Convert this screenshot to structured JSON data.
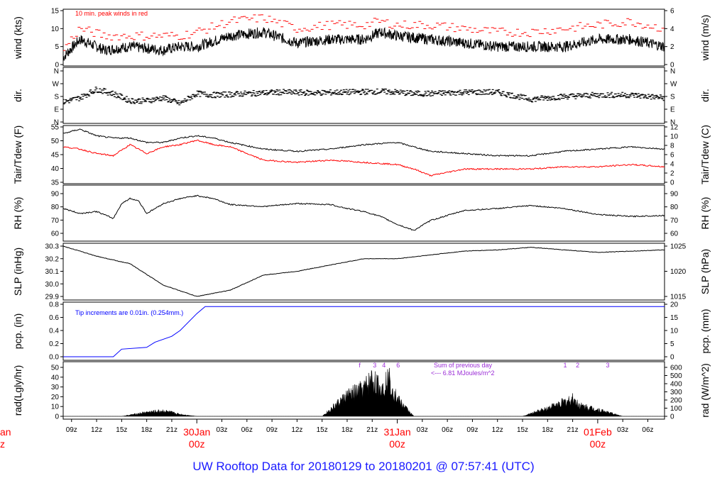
{
  "footer": {
    "title": "UW Rooftop Data for 20180129  to  20180201 @ 07:57:41  (UTC)"
  },
  "colors": {
    "primary_trace": "#000000",
    "peak_wind": "#ff0000",
    "dewpoint": "#ff0000",
    "precip": "#0000ff",
    "radiation_note": "#9a2bd6",
    "date_labels": "#ff0000",
    "title": "#1a1aff"
  },
  "x_axis": {
    "start": "2018-01-29 08:00 UTC",
    "end": "2018-02-01 07:57 UTC",
    "hour_ticks": [
      "09z",
      "12z",
      "15z",
      "18z",
      "21z",
      "03z",
      "06z",
      "09z",
      "12z",
      "15z",
      "18z",
      "21z",
      "03z",
      "06z",
      "09z",
      "12z",
      "15z",
      "18z",
      "21z",
      "03z",
      "06z"
    ],
    "hour_tick_times": [
      9,
      12,
      15,
      18,
      21,
      27,
      30,
      33,
      36,
      39,
      42,
      45,
      51,
      54,
      57,
      60,
      63,
      66,
      69,
      75,
      78
    ],
    "day_labels": [
      {
        "date": "30Jan",
        "hour": "00z",
        "t": 24
      },
      {
        "date": "31Jan",
        "hour": "00z",
        "t": 48
      },
      {
        "date": "01Feb",
        "hour": "00z",
        "t": 72
      }
    ],
    "partial_left_label": {
      "date": "an",
      "hour": "z"
    }
  },
  "chart_data": [
    {
      "type": "line",
      "name": "wind",
      "ylabel_left": "wind (kts)",
      "ylabel_right": "wind (m/s)",
      "annotation": "10 min. peak winds in red",
      "ylim": [
        0,
        15
      ],
      "left_ticks": [
        "0",
        "5",
        "10",
        "15"
      ],
      "right_ticks": [
        "0",
        "2",
        "4",
        "6"
      ],
      "x": [
        8,
        10,
        13,
        16,
        20,
        22,
        24,
        28,
        32,
        36,
        40,
        44,
        46,
        48,
        52,
        56,
        60,
        64,
        68,
        72,
        76,
        80
      ],
      "series": [
        {
          "values": [
            2,
            7,
            4,
            5,
            4,
            5,
            5,
            8,
            9,
            6,
            7,
            7,
            9,
            8,
            7,
            6,
            5,
            5,
            5,
            7,
            7,
            5
          ]
        },
        {
          "values": [
            4,
            10,
            8,
            8,
            8,
            8,
            9,
            12,
            13,
            10,
            11,
            11,
            12,
            11,
            11,
            10,
            9,
            9,
            10,
            11,
            12,
            10
          ]
        }
      ]
    },
    {
      "type": "scatter",
      "name": "direction",
      "ylabel_left": "dir.",
      "ylabel_right": "dir.",
      "ylim": [
        0,
        360
      ],
      "left_ticks": [
        "N",
        "E",
        "S",
        "W",
        "N"
      ],
      "right_ticks": [
        "N",
        "E",
        "S",
        "W",
        "N"
      ],
      "x": [
        8,
        10,
        12,
        14,
        16,
        18,
        20,
        22,
        24,
        26,
        30,
        34,
        38,
        42,
        46,
        48,
        50,
        52,
        56,
        60,
        64,
        68,
        72,
        76,
        80
      ],
      "values": [
        140,
        170,
        230,
        200,
        150,
        150,
        170,
        130,
        200,
        190,
        200,
        210,
        205,
        210,
        215,
        210,
        200,
        200,
        210,
        210,
        160,
        180,
        190,
        190,
        170
      ]
    },
    {
      "type": "line",
      "name": "temperature",
      "ylabel_left": "Tair/Tdew (F)",
      "ylabel_right": "Tair/Tdew (C)",
      "ylim": [
        30,
        55
      ],
      "left_ticks": [
        "35",
        "40",
        "45",
        "50",
        "55"
      ],
      "right_ticks": [
        "0",
        "2",
        "4",
        "6",
        "8",
        "10",
        "12"
      ],
      "x": [
        8,
        10,
        12,
        14,
        16,
        18,
        20,
        22,
        24,
        26,
        28,
        32,
        36,
        40,
        44,
        48,
        50,
        52,
        56,
        60,
        64,
        68,
        72,
        76,
        80
      ],
      "series": [
        {
          "values": [
            52,
            54,
            51,
            50,
            50,
            48,
            48,
            50,
            51,
            50,
            48,
            45,
            44,
            45,
            47,
            48,
            46,
            44,
            43,
            42,
            42,
            44,
            45,
            46,
            45
          ]
        },
        {
          "values": [
            46,
            45,
            43,
            42,
            47,
            43,
            46,
            47,
            49,
            47,
            46,
            40,
            39,
            40,
            39,
            38,
            36,
            33,
            36,
            36,
            36,
            37,
            37,
            38,
            37
          ]
        }
      ]
    },
    {
      "type": "line",
      "name": "relative_humidity",
      "ylabel_left": "RH (%)",
      "ylabel_right": "RH (%)",
      "ylim": [
        55,
        95
      ],
      "left_ticks": [
        "60",
        "70",
        "80",
        "90"
      ],
      "right_ticks": [
        "60",
        "70",
        "80",
        "90"
      ],
      "x": [
        8,
        10,
        12,
        14,
        15,
        16,
        17,
        18,
        20,
        22,
        24,
        26,
        28,
        32,
        36,
        40,
        42,
        44,
        46,
        48,
        50,
        52,
        56,
        60,
        64,
        68,
        72,
        76,
        80
      ],
      "values": [
        80,
        75,
        77,
        70,
        85,
        90,
        88,
        75,
        85,
        90,
        93,
        90,
        84,
        82,
        85,
        84,
        80,
        77,
        72,
        64,
        58,
        68,
        78,
        80,
        83,
        80,
        74,
        72,
        73
      ]
    },
    {
      "type": "line",
      "name": "sea_level_pressure",
      "ylabel_left": "SLP (inHg)",
      "ylabel_right": "SLP (hPa)",
      "ylim": [
        29.9,
        30.3
      ],
      "left_ticks": [
        "29.9",
        "30.0",
        "30.1",
        "30.2",
        "30.3"
      ],
      "right_ticks": [
        "1015",
        "1020",
        "1025"
      ],
      "x": [
        8,
        12,
        16,
        20,
        24,
        28,
        32,
        36,
        40,
        44,
        48,
        52,
        56,
        60,
        64,
        68,
        72,
        76,
        80
      ],
      "values": [
        30.3,
        30.22,
        30.16,
        29.99,
        29.9,
        29.95,
        30.07,
        30.1,
        30.15,
        30.2,
        30.2,
        30.23,
        30.26,
        30.27,
        30.29,
        30.27,
        30.25,
        30.26,
        30.27
      ]
    },
    {
      "type": "area",
      "name": "precipitation",
      "ylabel_left": "pcp. (in)",
      "ylabel_right": "pcp. (mm)",
      "annotation": "Tip increments are 0.01in. (0.254mm.)",
      "ylim": [
        0,
        0.9
      ],
      "left_ticks": [
        "0.0",
        "0.2",
        "0.4",
        "0.6",
        "0.8"
      ],
      "right_ticks": [
        "0",
        "5",
        "10",
        "15",
        "20"
      ],
      "x": [
        8,
        14,
        15,
        18,
        19,
        21,
        22,
        24,
        25,
        26,
        80
      ],
      "values": [
        0,
        0,
        0.13,
        0.16,
        0.25,
        0.35,
        0.45,
        0.74,
        0.86,
        0.86,
        0.86
      ]
    },
    {
      "type": "area",
      "name": "radiation",
      "ylabel_left": "rad(Lgly/hr)",
      "ylabel_right": "rad (W/m^2)",
      "annotation": "Sum of previous day\n<--- 6.81 MJoules/m^2",
      "ylim": [
        0,
        55
      ],
      "left_ticks": [
        "0",
        "10",
        "20",
        "30",
        "40",
        "50"
      ],
      "right_ticks": [
        "0",
        "100",
        "200",
        "300",
        "400",
        "500",
        "600"
      ],
      "x": [
        15,
        18,
        20,
        22,
        24,
        39,
        42,
        44,
        45,
        46,
        47,
        48,
        50,
        63,
        66,
        69,
        70,
        72,
        75
      ],
      "values": [
        0,
        6,
        8,
        3,
        0,
        0,
        30,
        40,
        55,
        40,
        55,
        25,
        0,
        0,
        12,
        25,
        15,
        10,
        0
      ],
      "markers": [
        "f",
        "3",
        "4",
        "6",
        "1",
        "2",
        "3"
      ]
    }
  ]
}
